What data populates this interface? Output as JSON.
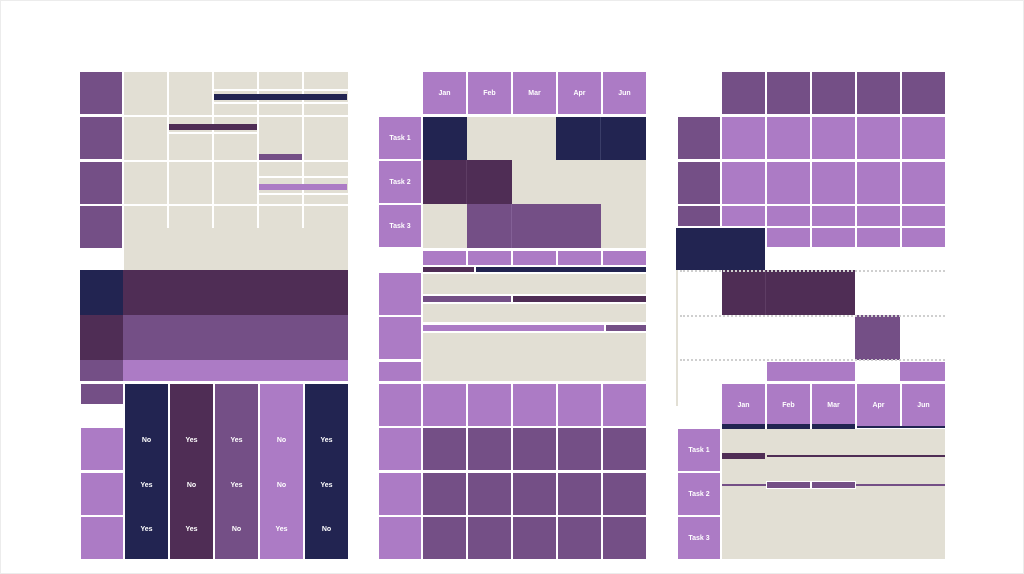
{
  "colors": {
    "beige": "#e2dfd4",
    "navy": "#222451",
    "plum": "#4f2d55",
    "violet": "#744f86",
    "lavender": "#ac7bc5",
    "background": "#ffffff"
  },
  "template_left": {
    "yes_no_rows": [
      [
        "No",
        "Yes",
        "Yes",
        "No",
        "Yes"
      ],
      [
        "Yes",
        "No",
        "Yes",
        "No",
        "Yes"
      ],
      [
        "Yes",
        "Yes",
        "No",
        "Yes",
        "No"
      ]
    ]
  },
  "template_middle": {
    "months": [
      "Jan",
      "Feb",
      "Mar",
      "Apr",
      "Jun"
    ],
    "tasks": [
      "Task 1",
      "Task 2",
      "Task 3"
    ]
  },
  "template_right": {
    "months": [
      "Jan",
      "Feb",
      "Mar",
      "Apr",
      "Jun"
    ],
    "tasks": [
      "Task 1",
      "Task 2",
      "Task 3"
    ]
  }
}
